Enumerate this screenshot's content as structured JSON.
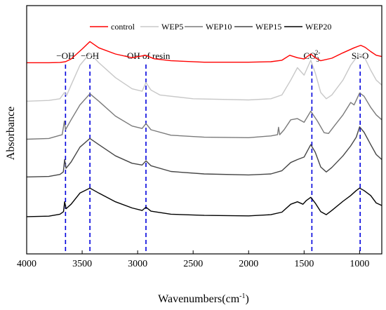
{
  "chart_data": {
    "type": "line",
    "xlabel": "Wavenumbers(cm",
    "xlabel_sup": "-1",
    "xlabel_end": ")",
    "ylabel": "Absorbance",
    "xlim": [
      4000,
      800
    ],
    "x_reversed": true,
    "x_ticks": [
      4000,
      3500,
      3000,
      2500,
      2000,
      1500,
      1000
    ],
    "y_ticks_shown": false,
    "legend_position": "top-right",
    "series": [
      {
        "name": "control",
        "color": "#ff0000",
        "points": [
          [
            4000,
            0.77
          ],
          [
            3800,
            0.77
          ],
          [
            3700,
            0.771
          ],
          [
            3650,
            0.774
          ],
          [
            3600,
            0.785
          ],
          [
            3500,
            0.825
          ],
          [
            3430,
            0.855
          ],
          [
            3350,
            0.83
          ],
          [
            3200,
            0.805
          ],
          [
            3050,
            0.79
          ],
          [
            2930,
            0.8
          ],
          [
            2850,
            0.786
          ],
          [
            2700,
            0.778
          ],
          [
            2400,
            0.772
          ],
          [
            2000,
            0.772
          ],
          [
            1800,
            0.774
          ],
          [
            1700,
            0.78
          ],
          [
            1630,
            0.8
          ],
          [
            1560,
            0.79
          ],
          [
            1500,
            0.785
          ],
          [
            1440,
            0.805
          ],
          [
            1400,
            0.79
          ],
          [
            1350,
            0.778
          ],
          [
            1250,
            0.788
          ],
          [
            1150,
            0.81
          ],
          [
            1050,
            0.83
          ],
          [
            990,
            0.84
          ],
          [
            950,
            0.832
          ],
          [
            900,
            0.815
          ],
          [
            850,
            0.8
          ],
          [
            800,
            0.795
          ]
        ]
      },
      {
        "name": "WEP5",
        "color": "#c8c8c8",
        "points": [
          [
            4000,
            0.615
          ],
          [
            3800,
            0.618
          ],
          [
            3700,
            0.625
          ],
          [
            3660,
            0.65
          ],
          [
            3640,
            0.638
          ],
          [
            3600,
            0.68
          ],
          [
            3520,
            0.76
          ],
          [
            3430,
            0.808
          ],
          [
            3350,
            0.77
          ],
          [
            3200,
            0.71
          ],
          [
            3050,
            0.665
          ],
          [
            2960,
            0.655
          ],
          [
            2925,
            0.69
          ],
          [
            2880,
            0.66
          ],
          [
            2800,
            0.64
          ],
          [
            2500,
            0.625
          ],
          [
            2000,
            0.62
          ],
          [
            1800,
            0.625
          ],
          [
            1700,
            0.64
          ],
          [
            1620,
            0.7
          ],
          [
            1560,
            0.75
          ],
          [
            1500,
            0.72
          ],
          [
            1440,
            0.78
          ],
          [
            1400,
            0.73
          ],
          [
            1350,
            0.65
          ],
          [
            1300,
            0.625
          ],
          [
            1250,
            0.64
          ],
          [
            1150,
            0.7
          ],
          [
            1080,
            0.76
          ],
          [
            1030,
            0.79
          ],
          [
            1000,
            0.805
          ],
          [
            960,
            0.795
          ],
          [
            900,
            0.74
          ],
          [
            850,
            0.7
          ],
          [
            800,
            0.68
          ]
        ]
      },
      {
        "name": "WEP10",
        "color": "#7a7a7a",
        "points": [
          [
            4000,
            0.462
          ],
          [
            3800,
            0.465
          ],
          [
            3720,
            0.475
          ],
          [
            3680,
            0.48
          ],
          [
            3660,
            0.535
          ],
          [
            3650,
            0.5
          ],
          [
            3600,
            0.54
          ],
          [
            3520,
            0.6
          ],
          [
            3430,
            0.645
          ],
          [
            3350,
            0.615
          ],
          [
            3200,
            0.555
          ],
          [
            3050,
            0.515
          ],
          [
            2960,
            0.505
          ],
          [
            2925,
            0.525
          ],
          [
            2880,
            0.5
          ],
          [
            2700,
            0.478
          ],
          [
            2400,
            0.47
          ],
          [
            2000,
            0.468
          ],
          [
            1800,
            0.475
          ],
          [
            1740,
            0.48
          ],
          [
            1730,
            0.51
          ],
          [
            1720,
            0.48
          ],
          [
            1680,
            0.5
          ],
          [
            1620,
            0.54
          ],
          [
            1560,
            0.545
          ],
          [
            1500,
            0.53
          ],
          [
            1440,
            0.575
          ],
          [
            1380,
            0.535
          ],
          [
            1320,
            0.488
          ],
          [
            1280,
            0.485
          ],
          [
            1220,
            0.52
          ],
          [
            1150,
            0.56
          ],
          [
            1080,
            0.61
          ],
          [
            1050,
            0.6
          ],
          [
            1000,
            0.648
          ],
          [
            960,
            0.635
          ],
          [
            900,
            0.59
          ],
          [
            850,
            0.56
          ],
          [
            800,
            0.54
          ]
        ]
      },
      {
        "name": "WEP15",
        "color": "#454545",
        "points": [
          [
            4000,
            0.31
          ],
          [
            3800,
            0.312
          ],
          [
            3700,
            0.32
          ],
          [
            3670,
            0.33
          ],
          [
            3658,
            0.38
          ],
          [
            3645,
            0.345
          ],
          [
            3600,
            0.37
          ],
          [
            3520,
            0.43
          ],
          [
            3430,
            0.465
          ],
          [
            3350,
            0.44
          ],
          [
            3200,
            0.395
          ],
          [
            3050,
            0.365
          ],
          [
            2960,
            0.358
          ],
          [
            2925,
            0.375
          ],
          [
            2880,
            0.355
          ],
          [
            2700,
            0.332
          ],
          [
            2400,
            0.322
          ],
          [
            2000,
            0.318
          ],
          [
            1800,
            0.322
          ],
          [
            1700,
            0.335
          ],
          [
            1620,
            0.368
          ],
          [
            1560,
            0.38
          ],
          [
            1500,
            0.39
          ],
          [
            1440,
            0.44
          ],
          [
            1400,
            0.41
          ],
          [
            1350,
            0.35
          ],
          [
            1300,
            0.33
          ],
          [
            1250,
            0.348
          ],
          [
            1150,
            0.395
          ],
          [
            1080,
            0.435
          ],
          [
            1030,
            0.47
          ],
          [
            1000,
            0.512
          ],
          [
            960,
            0.49
          ],
          [
            900,
            0.44
          ],
          [
            850,
            0.4
          ],
          [
            800,
            0.38
          ]
        ]
      },
      {
        "name": "WEP20",
        "color": "#000000",
        "points": [
          [
            4000,
            0.15
          ],
          [
            3800,
            0.152
          ],
          [
            3700,
            0.16
          ],
          [
            3668,
            0.17
          ],
          [
            3658,
            0.21
          ],
          [
            3645,
            0.182
          ],
          [
            3600,
            0.2
          ],
          [
            3520,
            0.245
          ],
          [
            3430,
            0.265
          ],
          [
            3350,
            0.245
          ],
          [
            3200,
            0.21
          ],
          [
            3050,
            0.185
          ],
          [
            2960,
            0.175
          ],
          [
            2925,
            0.188
          ],
          [
            2880,
            0.172
          ],
          [
            2700,
            0.16
          ],
          [
            2400,
            0.155
          ],
          [
            2000,
            0.153
          ],
          [
            1800,
            0.158
          ],
          [
            1700,
            0.168
          ],
          [
            1620,
            0.2
          ],
          [
            1560,
            0.21
          ],
          [
            1510,
            0.2
          ],
          [
            1480,
            0.215
          ],
          [
            1440,
            0.228
          ],
          [
            1400,
            0.205
          ],
          [
            1350,
            0.17
          ],
          [
            1300,
            0.158
          ],
          [
            1250,
            0.175
          ],
          [
            1150,
            0.212
          ],
          [
            1080,
            0.235
          ],
          [
            1030,
            0.255
          ],
          [
            1000,
            0.265
          ],
          [
            960,
            0.255
          ],
          [
            900,
            0.235
          ],
          [
            850,
            0.205
          ],
          [
            800,
            0.195
          ]
        ]
      }
    ],
    "reference_lines": {
      "color": "#0000dd",
      "lines": [
        {
          "x": 3650,
          "label": "−OH"
        },
        {
          "x": 3430,
          "label": "−OH"
        },
        {
          "x": 2925,
          "label": "−OH of resin"
        },
        {
          "x": 1430,
          "label": "CO",
          "sub": "3",
          "sup": "2-"
        },
        {
          "x": 995,
          "label": "Si-O"
        }
      ]
    }
  }
}
